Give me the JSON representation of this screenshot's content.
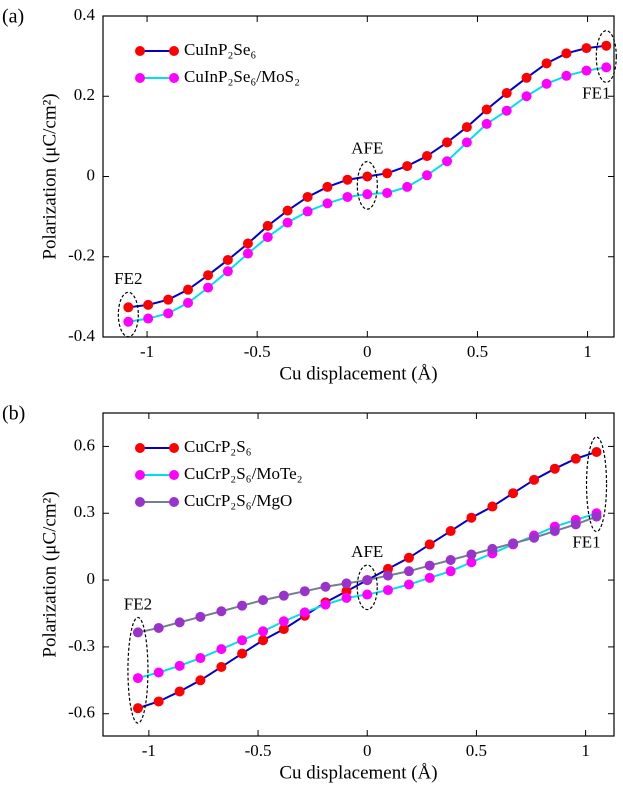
{
  "chart_data": [
    {
      "type": "line",
      "panel_label": "(a)",
      "x_label": "Cu displacement (Å)",
      "y_label": "Polarization (μC/cm²)",
      "x": [
        -1.085,
        -0.995,
        -0.904,
        -0.814,
        -0.723,
        -0.633,
        -0.542,
        -0.452,
        -0.362,
        -0.271,
        -0.181,
        -0.09,
        0,
        0.09,
        0.181,
        0.271,
        0.362,
        0.452,
        0.542,
        0.633,
        0.723,
        0.814,
        0.904,
        0.995,
        1.085
      ],
      "series": [
        {
          "name": "CuInP₂Se₆",
          "color": "#0000cc",
          "marker_color": "#ff0000",
          "values": [
            -0.326,
            -0.32,
            -0.307,
            -0.282,
            -0.246,
            -0.208,
            -0.167,
            -0.123,
            -0.085,
            -0.051,
            -0.026,
            -0.008,
            0,
            0.008,
            0.026,
            0.051,
            0.085,
            0.123,
            0.167,
            0.208,
            0.246,
            0.282,
            0.307,
            0.32,
            0.326
          ]
        },
        {
          "name": "CuInP₂Se₆/MoS₂",
          "color": "#00e0e8",
          "marker_color": "#ff00ff",
          "values": [
            -0.362,
            -0.354,
            -0.341,
            -0.315,
            -0.277,
            -0.236,
            -0.192,
            -0.151,
            -0.115,
            -0.087,
            -0.067,
            -0.051,
            -0.044,
            -0.041,
            -0.026,
            0.003,
            0.038,
            0.085,
            0.131,
            0.164,
            0.2,
            0.231,
            0.251,
            0.264,
            0.272
          ]
        }
      ],
      "annotations": [
        "FE2",
        "AFE",
        "FE1"
      ],
      "xlim": [
        -1.2,
        1.12
      ],
      "xticks": [
        -1,
        -0.5,
        0,
        0.5,
        1
      ],
      "ylim": [
        -0.4,
        0.4
      ],
      "yticks": [
        -0.4,
        -0.2,
        0,
        0.2,
        0.4
      ],
      "legend": "upper left"
    },
    {
      "type": "line",
      "panel_label": "(b)",
      "x_label": "Cu displacement (Å)",
      "y_label": "Polarization (μC/cm²)",
      "x": [
        -1.05,
        -0.955,
        -0.859,
        -0.764,
        -0.668,
        -0.573,
        -0.477,
        -0.382,
        -0.286,
        -0.191,
        -0.095,
        0,
        0.095,
        0.191,
        0.286,
        0.382,
        0.477,
        0.573,
        0.668,
        0.764,
        0.859,
        0.955,
        1.05
      ],
      "series": [
        {
          "name": "CuCrP₂S₆",
          "color": "#0000cc",
          "marker_color": "#ff0000",
          "values": [
            -0.575,
            -0.545,
            -0.5,
            -0.45,
            -0.39,
            -0.33,
            -0.27,
            -0.22,
            -0.16,
            -0.1,
            -0.05,
            0,
            0.05,
            0.1,
            0.16,
            0.22,
            0.28,
            0.33,
            0.39,
            0.45,
            0.5,
            0.545,
            0.575
          ]
        },
        {
          "name": "CuCrP₂S₆/MoTe₂",
          "color": "#00e0e8",
          "marker_color": "#ff00ff",
          "values": [
            -0.44,
            -0.415,
            -0.385,
            -0.35,
            -0.31,
            -0.27,
            -0.23,
            -0.185,
            -0.145,
            -0.11,
            -0.08,
            -0.065,
            -0.045,
            -0.02,
            0.01,
            0.04,
            0.08,
            0.12,
            0.16,
            0.2,
            0.24,
            0.27,
            0.3
          ]
        },
        {
          "name": "CuCrP₂S₆/MgO",
          "color": "#708090",
          "marker_color": "#9933cc",
          "values": [
            -0.235,
            -0.215,
            -0.19,
            -0.165,
            -0.14,
            -0.115,
            -0.09,
            -0.07,
            -0.05,
            -0.03,
            -0.015,
            0,
            0.02,
            0.04,
            0.065,
            0.09,
            0.115,
            0.14,
            0.165,
            0.19,
            0.22,
            0.25,
            0.285
          ]
        }
      ],
      "annotations": [
        "FE2",
        "AFE",
        "FE1"
      ],
      "xlim": [
        -1.21,
        1.13
      ],
      "xticks": [
        -1,
        -0.5,
        0,
        0.5,
        1
      ],
      "ylim": [
        -0.7,
        0.75
      ],
      "yticks": [
        -0.6,
        -0.3,
        0,
        0.3,
        0.6
      ],
      "legend": "upper left"
    }
  ]
}
